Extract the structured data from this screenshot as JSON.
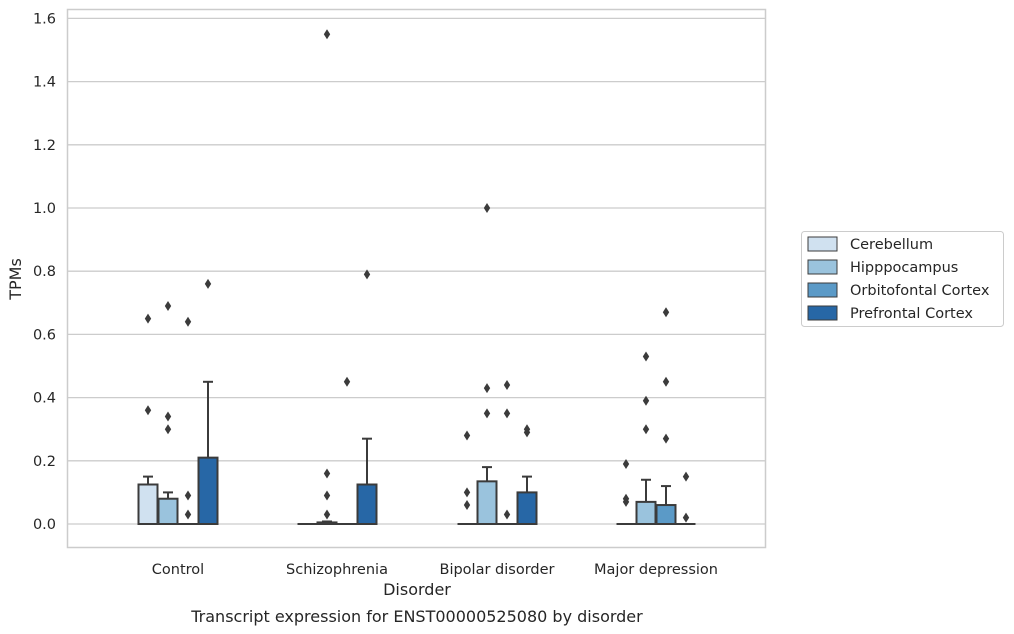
{
  "chart_data": {
    "type": "box",
    "title": "Transcript expression for ENST00000525080 by disorder",
    "xlabel": "Disorder",
    "ylabel": "TPMs",
    "ylim": [
      -0.075,
      1.63
    ],
    "yticks": [
      "0.0",
      "0.2",
      "0.4",
      "0.6",
      "0.8",
      "1.0",
      "1.2",
      "1.4",
      "1.6"
    ],
    "categories": [
      "Control",
      "Schizophrenia",
      "Bipolar disorder",
      "Major depression"
    ],
    "grid": "horizontal",
    "legend_position": "right",
    "series": [
      {
        "name": "Cerebellum",
        "color": "#d0e1f0",
        "boxes": [
          {
            "q1": 0,
            "median": 0,
            "q3": 0.125,
            "whisker_low": 0,
            "whisker_high": 0.15,
            "outliers": [
              0.36,
              0.65
            ]
          },
          {
            "q1": 0,
            "median": 0,
            "q3": 0,
            "whisker_low": 0,
            "whisker_high": 0,
            "outliers": []
          },
          {
            "q1": 0,
            "median": 0,
            "q3": 0,
            "whisker_low": 0,
            "whisker_high": 0,
            "outliers": [
              0.06,
              0.1,
              0.28
            ]
          },
          {
            "q1": 0,
            "median": 0,
            "q3": 0,
            "whisker_low": 0,
            "whisker_high": 0,
            "outliers": [
              0.07,
              0.08,
              0.19
            ]
          }
        ]
      },
      {
        "name": "Hipppocampus",
        "color": "#9ac3dd",
        "boxes": [
          {
            "q1": 0,
            "median": 0,
            "q3": 0.08,
            "whisker_low": 0,
            "whisker_high": 0.1,
            "outliers": [
              0.3,
              0.34,
              0.69
            ]
          },
          {
            "q1": 0,
            "median": 0,
            "q3": 0.005,
            "whisker_low": 0,
            "whisker_high": 0.008,
            "outliers": [
              0.03,
              0.09,
              0.16,
              1.55
            ]
          },
          {
            "q1": 0,
            "median": 0,
            "q3": 0.135,
            "whisker_low": 0,
            "whisker_high": 0.18,
            "outliers": [
              0.35,
              0.43,
              1.0
            ]
          },
          {
            "q1": 0,
            "median": 0,
            "q3": 0.07,
            "whisker_low": 0,
            "whisker_high": 0.14,
            "outliers": [
              0.3,
              0.39,
              0.53
            ]
          }
        ]
      },
      {
        "name": "Orbitofontal Cortex",
        "color": "#5b9ac7",
        "boxes": [
          {
            "q1": 0,
            "median": 0,
            "q3": 0,
            "whisker_low": 0,
            "whisker_high": 0,
            "outliers": [
              0.03,
              0.09,
              0.64
            ]
          },
          {
            "q1": 0,
            "median": 0,
            "q3": 0,
            "whisker_low": 0,
            "whisker_high": 0,
            "outliers": [
              0.45
            ]
          },
          {
            "q1": 0,
            "median": 0,
            "q3": 0,
            "whisker_low": 0,
            "whisker_high": 0,
            "outliers": [
              0.03,
              0.35,
              0.44
            ]
          },
          {
            "q1": 0,
            "median": 0,
            "q3": 0.06,
            "whisker_low": 0,
            "whisker_high": 0.12,
            "outliers": [
              0.27,
              0.45,
              0.67
            ]
          }
        ]
      },
      {
        "name": "Prefrontal Cortex",
        "color": "#2767a6",
        "boxes": [
          {
            "q1": 0,
            "median": 0,
            "q3": 0.21,
            "whisker_low": 0,
            "whisker_high": 0.45,
            "outliers": [
              0.76
            ]
          },
          {
            "q1": 0,
            "median": 0,
            "q3": 0.125,
            "whisker_low": 0,
            "whisker_high": 0.27,
            "outliers": [
              0.79
            ]
          },
          {
            "q1": 0,
            "median": 0,
            "q3": 0.1,
            "whisker_low": 0,
            "whisker_high": 0.15,
            "outliers": [
              0.29,
              0.3
            ]
          },
          {
            "q1": 0,
            "median": 0,
            "q3": 0,
            "whisker_low": 0,
            "whisker_high": 0,
            "outliers": [
              0.02,
              0.15
            ]
          }
        ]
      }
    ]
  }
}
